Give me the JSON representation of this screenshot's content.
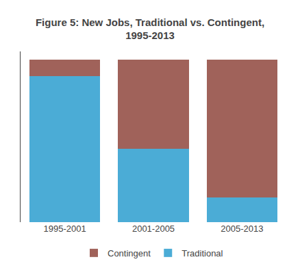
{
  "chart_data": {
    "type": "bar",
    "stacked": true,
    "title": "Figure 5: New Jobs, Traditional vs. Contingent,\n1995-2013",
    "categories": [
      "1995-2001",
      "2001-2005",
      "2005-2013"
    ],
    "series": [
      {
        "name": "Traditional",
        "color": "#4BACD6",
        "values": [
          90,
          45,
          15
        ]
      },
      {
        "name": "Contingent",
        "color": "#A0625A",
        "values": [
          10,
          55,
          85
        ]
      }
    ],
    "ylim": [
      0,
      105
    ],
    "yticks": [],
    "grid": false,
    "tick_labels": "x",
    "legend": "bottom"
  }
}
